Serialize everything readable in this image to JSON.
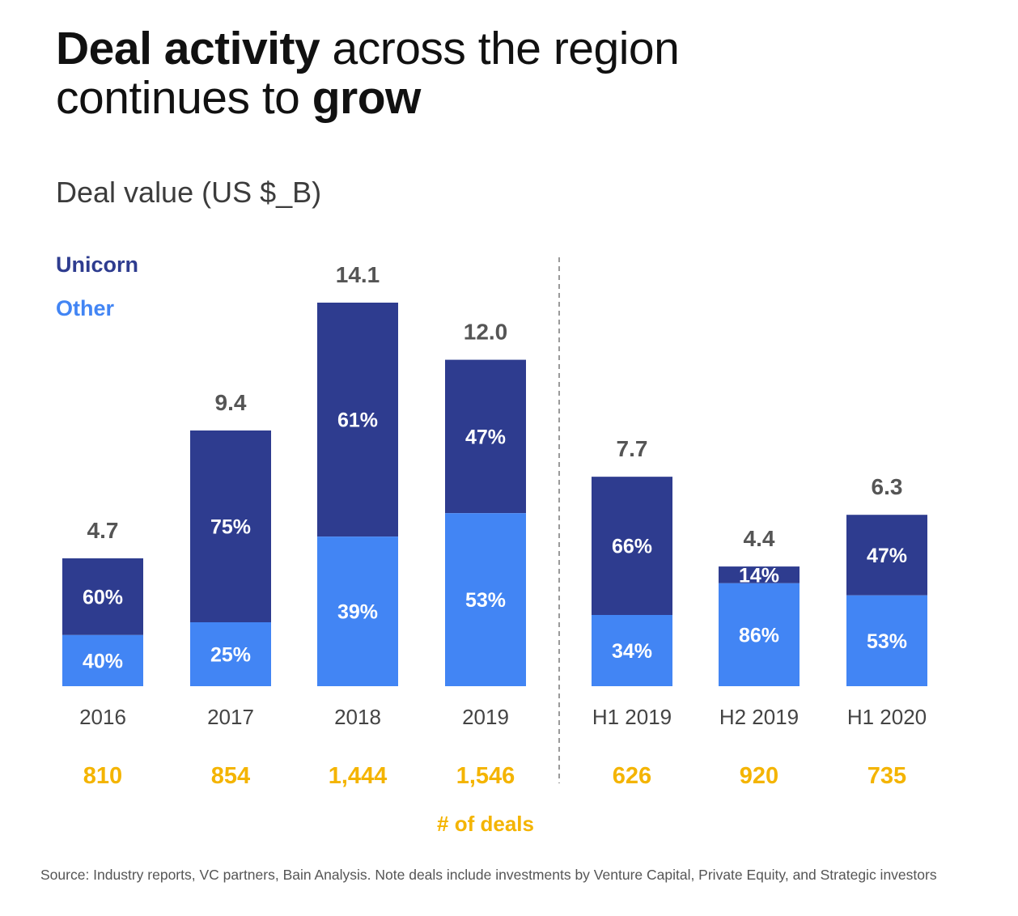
{
  "title": {
    "bold_1": "Deal activity",
    "light_1": " across the region",
    "light_2": "continues to ",
    "bold_2": "grow"
  },
  "subtitle": "Deal value (US $_B)",
  "legend": {
    "unicorn": "Unicorn",
    "other": "Other"
  },
  "deals_caption": "# of deals",
  "source": "Source: Industry reports, VC partners, Bain Analysis. Note deals include investments by Venture Capital, Private Equity, and Strategic investors",
  "colors": {
    "unicorn": "#2e3c8f",
    "other": "#4285f4",
    "deals": "#f4b400",
    "total_label": "#555555",
    "category_label": "#444444",
    "divider": "#9a9a9a"
  },
  "chart_data": {
    "type": "bar",
    "stacked": true,
    "categories": [
      "2016",
      "2017",
      "2018",
      "2019",
      "H1 2019",
      "H2 2019",
      "H1 2020"
    ],
    "totals": [
      4.7,
      9.4,
      14.1,
      12.0,
      7.7,
      4.4,
      6.3
    ],
    "total_labels": [
      "4.7",
      "9.4",
      "14.1",
      "12.0",
      "7.7",
      "4.4",
      "6.3"
    ],
    "series": [
      {
        "name": "Unicorn",
        "share_labels": [
          "60%",
          "75%",
          "61%",
          "47%",
          "66%",
          "14%",
          "47%"
        ]
      },
      {
        "name": "Other",
        "share_labels": [
          "40%",
          "25%",
          "39%",
          "53%",
          "34%",
          "86%",
          "53%"
        ]
      }
    ],
    "deals": [
      "810",
      "854",
      "1,444",
      "1,546",
      "626",
      "920",
      "735"
    ],
    "ylim": [
      0,
      14.1
    ],
    "divider_after_category": "2019"
  }
}
